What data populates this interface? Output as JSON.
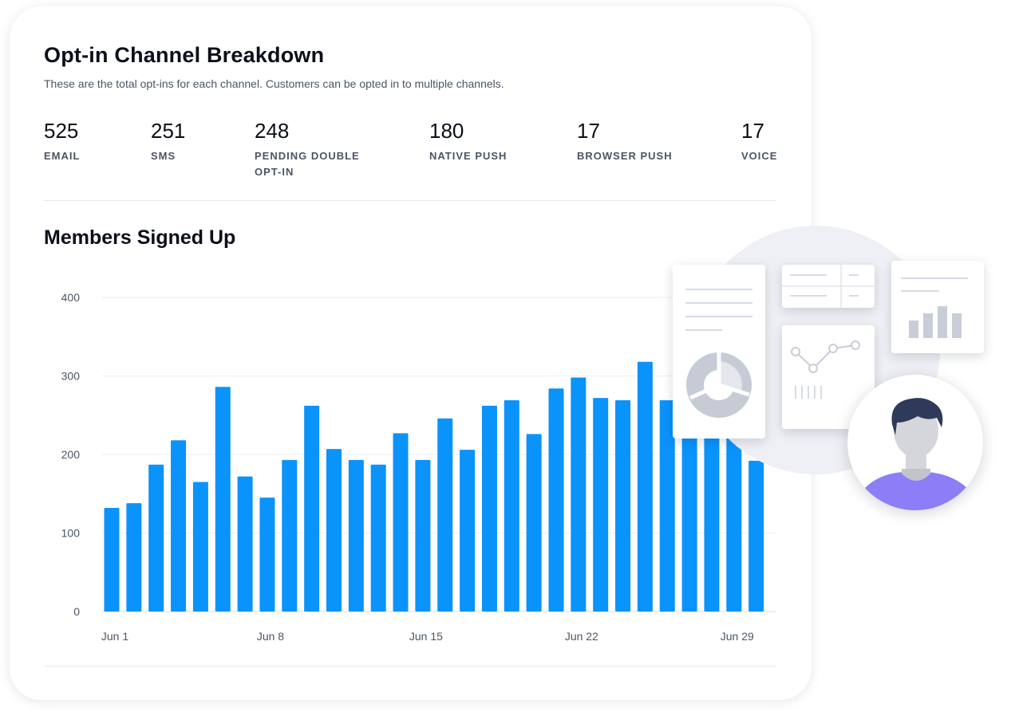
{
  "header": {
    "title": "Opt-in Channel Breakdown",
    "subtitle": "These are the total opt-ins for each channel. Customers can be opted in to multiple channels."
  },
  "stats": [
    {
      "value": "525",
      "label": "EMAIL"
    },
    {
      "value": "251",
      "label": "SMS"
    },
    {
      "value": "248",
      "label": "PENDING DOUBLE OPT-IN"
    },
    {
      "value": "180",
      "label": "NATIVE PUSH"
    },
    {
      "value": "17",
      "label": "BROWSER PUSH"
    },
    {
      "value": "17",
      "label": "VOICE"
    }
  ],
  "section": {
    "title": "Members Signed Up"
  },
  "chart_data": {
    "type": "bar",
    "title": "Members Signed Up",
    "xlabel": "",
    "ylabel": "",
    "ylim": [
      0,
      400
    ],
    "yticks": [
      0,
      100,
      200,
      300,
      400
    ],
    "xtick_labels": [
      "Jun 1",
      "Jun 8",
      "Jun 15",
      "Jun 22",
      "Jun 29"
    ],
    "xtick_indices": [
      0,
      7,
      14,
      21,
      28
    ],
    "grid": true,
    "bar_color": "#0a93fb",
    "categories": [
      "Jun 1",
      "Jun 2",
      "Jun 3",
      "Jun 4",
      "Jun 5",
      "Jun 6",
      "Jun 7",
      "Jun 8",
      "Jun 9",
      "Jun 10",
      "Jun 11",
      "Jun 12",
      "Jun 13",
      "Jun 14",
      "Jun 15",
      "Jun 16",
      "Jun 17",
      "Jun 18",
      "Jun 19",
      "Jun 20",
      "Jun 21",
      "Jun 22",
      "Jun 23",
      "Jun 24",
      "Jun 25",
      "Jun 26",
      "Jun 27",
      "Jun 28",
      "Jun 29",
      "Jun 30"
    ],
    "values": [
      132,
      138,
      187,
      218,
      165,
      286,
      172,
      145,
      193,
      262,
      207,
      193,
      187,
      227,
      193,
      246,
      206,
      262,
      269,
      226,
      284,
      298,
      272,
      269,
      318,
      269,
      295,
      264,
      237,
      192
    ]
  },
  "illustration": {
    "accent_color": "#8b7ef6",
    "hair_color": "#2f3a5a",
    "icons": [
      "report-panel-icon",
      "table-panel-icon",
      "bar-chart-panel-icon",
      "line-chart-panel-icon",
      "user-avatar-icon"
    ]
  }
}
